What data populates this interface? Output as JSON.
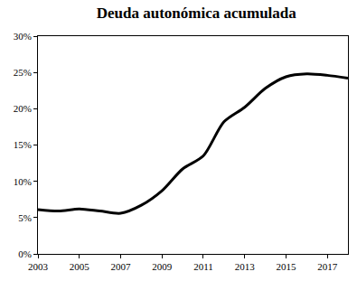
{
  "chart_data": {
    "type": "line",
    "title": "Deuda autonómica acumulada",
    "x": [
      2003,
      2004,
      2005,
      2006,
      2007,
      2008,
      2009,
      2010,
      2011,
      2012,
      2013,
      2014,
      2015,
      2016,
      2017,
      2018
    ],
    "values": [
      6.1,
      5.9,
      6.2,
      5.9,
      5.6,
      6.7,
      8.7,
      11.7,
      13.5,
      18.2,
      20.2,
      22.8,
      24.4,
      24.8,
      24.6,
      24.2
    ],
    "color": "#000000",
    "xlim": [
      2003,
      2018
    ],
    "xticks": [
      2003,
      2005,
      2007,
      2009,
      2011,
      2013,
      2015,
      2017
    ],
    "ylim": [
      0,
      30
    ],
    "yticks": [
      {
        "value": 0,
        "label": "0%"
      },
      {
        "value": 5,
        "label": "5%"
      },
      {
        "value": 10,
        "label": "10%"
      },
      {
        "value": 15,
        "label": "15%"
      },
      {
        "value": 20,
        "label": "20%"
      },
      {
        "value": 25,
        "label": "25%"
      },
      {
        "value": 30,
        "label": "30%"
      }
    ],
    "grid": false
  }
}
